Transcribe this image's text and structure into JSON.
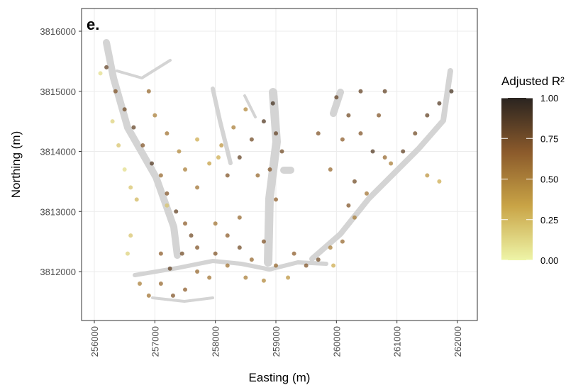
{
  "chart_data": {
    "type": "scatter",
    "panel_label": "e.",
    "x_label": "Easting (m)",
    "y_label": "Northing (m)",
    "xlim": [
      255789,
      262328
    ],
    "ylim": [
      3811186,
      3816378
    ],
    "xticks": [
      256000,
      257000,
      258000,
      259000,
      260000,
      261000,
      262000
    ],
    "yticks": [
      3812000,
      3813000,
      3814000,
      3815000,
      3816000
    ],
    "grid": true,
    "legend_title": "Adjusted R²",
    "colorbar_lim": [
      0,
      1
    ],
    "colorbar_ticks": [
      {
        "value": 0,
        "label": "0.00"
      },
      {
        "value": 0.25,
        "label": "0.25"
      },
      {
        "value": 0.5,
        "label": "0.50"
      },
      {
        "value": 0.75,
        "label": "0.75"
      },
      {
        "value": 1,
        "label": "1.00"
      }
    ],
    "colormap": [
      "#eef5a8",
      "#c9a446",
      "#8b5a2b",
      "#2a2420"
    ],
    "points": [
      [
        256200,
        3815400,
        0.8
      ],
      [
        256350,
        3815000,
        0.7
      ],
      [
        256500,
        3814700,
        0.75
      ],
      [
        256650,
        3814400,
        0.8
      ],
      [
        256800,
        3814100,
        0.7
      ],
      [
        256950,
        3813800,
        0.85
      ],
      [
        257100,
        3813600,
        0.6
      ],
      [
        257200,
        3813300,
        0.7
      ],
      [
        257350,
        3813000,
        0.8
      ],
      [
        257500,
        3812800,
        0.65
      ],
      [
        257600,
        3812600,
        0.75
      ],
      [
        256900,
        3815000,
        0.6
      ],
      [
        257000,
        3814600,
        0.5
      ],
      [
        257200,
        3814300,
        0.55
      ],
      [
        257400,
        3814000,
        0.45
      ],
      [
        257500,
        3813700,
        0.5
      ],
      [
        257700,
        3813400,
        0.55
      ],
      [
        256300,
        3814500,
        0.15
      ],
      [
        256400,
        3814100,
        0.2
      ],
      [
        256500,
        3813700,
        0.1
      ],
      [
        256600,
        3813400,
        0.2
      ],
      [
        256700,
        3813200,
        0.25
      ],
      [
        256600,
        3812600,
        0.2
      ],
      [
        256550,
        3812300,
        0.15
      ],
      [
        257700,
        3814200,
        0.3
      ],
      [
        257900,
        3813800,
        0.35
      ],
      [
        256100,
        3815300,
        0.1
      ],
      [
        257200,
        3813100,
        0.2
      ],
      [
        256750,
        3811800,
        0.5
      ],
      [
        256900,
        3811600,
        0.55
      ],
      [
        257100,
        3811800,
        0.6
      ],
      [
        257300,
        3811600,
        0.7
      ],
      [
        257500,
        3811700,
        0.65
      ],
      [
        257250,
        3812050,
        0.8
      ],
      [
        257450,
        3812300,
        0.75
      ],
      [
        257700,
        3812000,
        0.6
      ],
      [
        257900,
        3811900,
        0.55
      ],
      [
        257100,
        3812300,
        0.65
      ],
      [
        257700,
        3812400,
        0.7
      ],
      [
        258000,
        3812300,
        0.7
      ],
      [
        258200,
        3812600,
        0.65
      ],
      [
        258400,
        3812400,
        0.75
      ],
      [
        258600,
        3812200,
        0.6
      ],
      [
        258800,
        3812500,
        0.7
      ],
      [
        258200,
        3812100,
        0.55
      ],
      [
        258500,
        3811900,
        0.5
      ],
      [
        258800,
        3811850,
        0.45
      ],
      [
        259000,
        3812100,
        0.6
      ],
      [
        258400,
        3812900,
        0.6
      ],
      [
        258000,
        3812800,
        0.55
      ],
      [
        259200,
        3811900,
        0.4
      ],
      [
        258200,
        3813600,
        0.7
      ],
      [
        258400,
        3813900,
        0.8
      ],
      [
        258600,
        3814200,
        0.75
      ],
      [
        258800,
        3814500,
        0.85
      ],
      [
        258950,
        3814800,
        0.9
      ],
      [
        259000,
        3814300,
        0.8
      ],
      [
        258900,
        3813700,
        0.7
      ],
      [
        259000,
        3813200,
        0.65
      ],
      [
        258100,
        3814100,
        0.4
      ],
      [
        258300,
        3814400,
        0.5
      ],
      [
        258050,
        3813900,
        0.3
      ],
      [
        258700,
        3813600,
        0.6
      ],
      [
        258500,
        3814700,
        0.45
      ],
      [
        259100,
        3814000,
        0.75
      ],
      [
        260000,
        3814900,
        0.8
      ],
      [
        260200,
        3814600,
        0.75
      ],
      [
        260400,
        3814300,
        0.7
      ],
      [
        260600,
        3814000,
        0.85
      ],
      [
        260800,
        3813900,
        0.6
      ],
      [
        260900,
        3813800,
        0.5
      ],
      [
        261100,
        3814000,
        0.8
      ],
      [
        261300,
        3814300,
        0.75
      ],
      [
        261500,
        3814600,
        0.8
      ],
      [
        261700,
        3814800,
        0.85
      ],
      [
        261900,
        3815000,
        0.9
      ],
      [
        260700,
        3814600,
        0.7
      ],
      [
        260400,
        3815000,
        0.8
      ],
      [
        260100,
        3814200,
        0.65
      ],
      [
        259900,
        3813700,
        0.6
      ],
      [
        260300,
        3813500,
        0.75
      ],
      [
        260200,
        3813100,
        0.7
      ],
      [
        260500,
        3813300,
        0.55
      ],
      [
        261500,
        3813600,
        0.4
      ],
      [
        261700,
        3813500,
        0.3
      ],
      [
        259700,
        3814300,
        0.7
      ],
      [
        260800,
        3815000,
        0.8
      ],
      [
        259500,
        3812100,
        0.7
      ],
      [
        259700,
        3812200,
        0.75
      ],
      [
        259900,
        3812400,
        0.5
      ],
      [
        260100,
        3812500,
        0.6
      ],
      [
        260300,
        3812900,
        0.5
      ],
      [
        259300,
        3812300,
        0.65
      ],
      [
        259950,
        3812100,
        0.3
      ]
    ]
  }
}
